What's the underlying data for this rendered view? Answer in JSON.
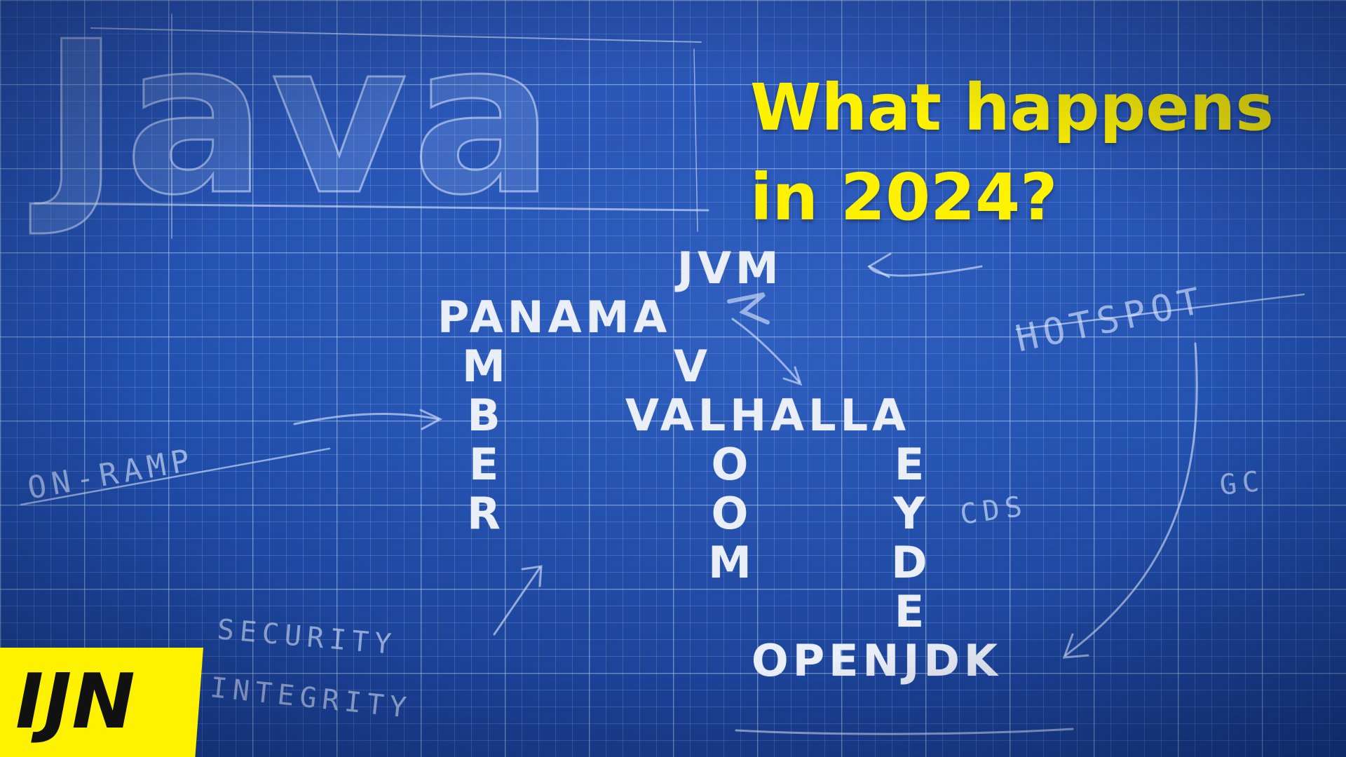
{
  "logo_sketch": "Java",
  "headline": {
    "line1": "What happens",
    "line2": "in 2024?"
  },
  "crossword": {
    "jvm": "JVM",
    "panama": "PANAMA",
    "amber_tail": [
      "M",
      "B",
      "E",
      "R"
    ],
    "java_tail": [
      "V"
    ],
    "valhalla": "VALHALLA",
    "loom_tail": [
      "O",
      "O",
      "M"
    ],
    "leyden_tail": [
      "E",
      "Y",
      "D",
      "E"
    ],
    "openjdk": "OPENJDK"
  },
  "annotations": {
    "on_ramp": "ON-RAMP",
    "hotspot": "HOTSPOT",
    "cds": "CDS",
    "gc": "GC",
    "security": "SECURITY",
    "integrity": "INTEGRITY"
  },
  "badge": {
    "label": "IJN"
  },
  "colors": {
    "background": "#2150ae",
    "accent": "#fff200",
    "badge_text": "#111111",
    "chalk": "#e9eef7"
  }
}
